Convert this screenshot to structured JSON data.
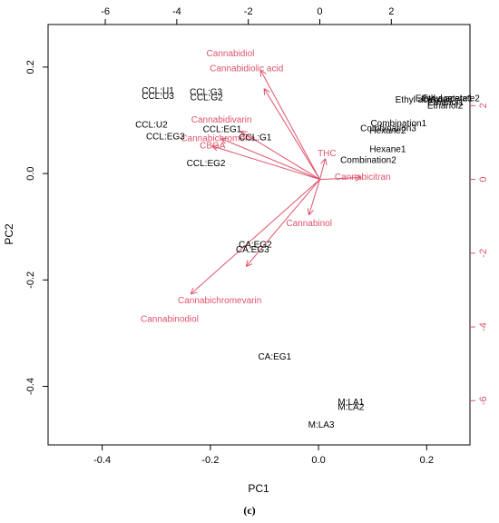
{
  "caption": "(c)",
  "colors": {
    "scores": "#000000",
    "loadings": "#DF536B"
  },
  "chart_data": {
    "type": "scatter",
    "subtype": "pca-biplot",
    "title": "",
    "xlabel": "PC1",
    "ylabel": "PC2",
    "xlim": [
      -0.5,
      0.28
    ],
    "ylim": [
      -0.51,
      0.28
    ],
    "xticks": [
      "-0.4",
      "-0.2",
      "0.0",
      "0.2"
    ],
    "xtick_values": [
      -0.4,
      -0.2,
      0.0,
      0.2
    ],
    "yticks": [
      "-0.4",
      "-0.2",
      "0.0",
      "0.2"
    ],
    "ytick_values": [
      -0.4,
      -0.2,
      0.0,
      0.2
    ],
    "secondary_xlim": [
      -7.6,
      4.2
    ],
    "secondary_ylim": [
      -7.2,
      4.2
    ],
    "top_ticks": [
      "-6",
      "-4",
      "-2",
      "0",
      "2"
    ],
    "top_tick_values": [
      -6,
      -4,
      -2,
      0,
      2
    ],
    "right_ticks": [
      "-6",
      "-4",
      "-2",
      "0",
      "2"
    ],
    "right_tick_values": [
      -6,
      -4,
      -2,
      0,
      2
    ],
    "scores": [
      {
        "label": "CCL:U1",
        "x": -0.297,
        "y": 0.155
      },
      {
        "label": "CCL:U3",
        "x": -0.297,
        "y": 0.145
      },
      {
        "label": "CCL:G3",
        "x": -0.208,
        "y": 0.152
      },
      {
        "label": "CCL:G2",
        "x": -0.207,
        "y": 0.142
      },
      {
        "label": "CCL:U2",
        "x": -0.309,
        "y": 0.091
      },
      {
        "label": "CCL:EG1",
        "x": -0.178,
        "y": 0.082
      },
      {
        "label": "CCL:EG3",
        "x": -0.283,
        "y": 0.069
      },
      {
        "label": "CCL:G1",
        "x": -0.117,
        "y": 0.067
      },
      {
        "label": "CCL:EG2",
        "x": -0.208,
        "y": 0.018
      },
      {
        "label": "CA:EG2",
        "x": -0.117,
        "y": -0.134
      },
      {
        "label": "CA:EG3",
        "x": -0.122,
        "y": -0.144
      },
      {
        "label": "CA:EG1",
        "x": -0.081,
        "y": -0.345
      },
      {
        "label": "M:LA1",
        "x": 0.06,
        "y": -0.43
      },
      {
        "label": "M:LA2",
        "x": 0.06,
        "y": -0.44
      },
      {
        "label": "M:LA3",
        "x": 0.005,
        "y": -0.473
      },
      {
        "label": "Combination1",
        "x": 0.148,
        "y": 0.093
      },
      {
        "label": "Combination2",
        "x": 0.092,
        "y": 0.024
      },
      {
        "label": "Hexane1",
        "x": 0.128,
        "y": 0.045
      },
      {
        "label": "Hexane2",
        "x": 0.128,
        "y": 0.08
      },
      {
        "label": "Combination3",
        "x": 0.129,
        "y": 0.084
      },
      {
        "label": "Ethanol1",
        "x": 0.235,
        "y": 0.133
      },
      {
        "label": "Ethanol2",
        "x": 0.234,
        "y": 0.127
      },
      {
        "label": "Ethyl acetate1",
        "x": 0.232,
        "y": 0.14
      },
      {
        "label": "Ethyl acetate2",
        "x": 0.245,
        "y": 0.14
      },
      {
        "label": "Ethyl acetate3",
        "x": 0.195,
        "y": 0.138
      }
    ],
    "loadings": [
      {
        "label": "Cannabidiol",
        "x": -1.65,
        "y": 2.95,
        "label_x": -2.5,
        "label_y": 3.4
      },
      {
        "label": "Cannabidiolic acid",
        "x": -1.55,
        "y": 2.45,
        "label_x": -2.05,
        "label_y": 3.0
      },
      {
        "label": "Cannabidivarin",
        "x": -2.2,
        "y": 1.3,
        "label_x": -2.75,
        "label_y": 1.6
      },
      {
        "label": "Cannabichromene",
        "x": -2.75,
        "y": 1.1,
        "label_x": -2.85,
        "label_y": 1.1
      },
      {
        "label": "CBGA",
        "x": -3.0,
        "y": 0.9,
        "label_x": -3.0,
        "label_y": 0.9
      },
      {
        "label": "THC",
        "x": 0.15,
        "y": 0.55,
        "label_x": 0.2,
        "label_y": 0.7
      },
      {
        "label": "Cannabicitran",
        "x": 1.15,
        "y": 0.05,
        "label_x": 1.2,
        "label_y": 0.05
      },
      {
        "label": "Cannabinol",
        "x": -0.3,
        "y": -0.95,
        "label_x": -0.3,
        "label_y": -1.2
      },
      {
        "label": "Cannabichromevarin",
        "x": -3.6,
        "y": -3.1,
        "label_x": -2.8,
        "label_y": -3.3
      },
      {
        "label": "Cannabinodiol",
        "x": -2.05,
        "y": -2.35,
        "label_x": -4.2,
        "label_y": -3.8
      }
    ]
  }
}
